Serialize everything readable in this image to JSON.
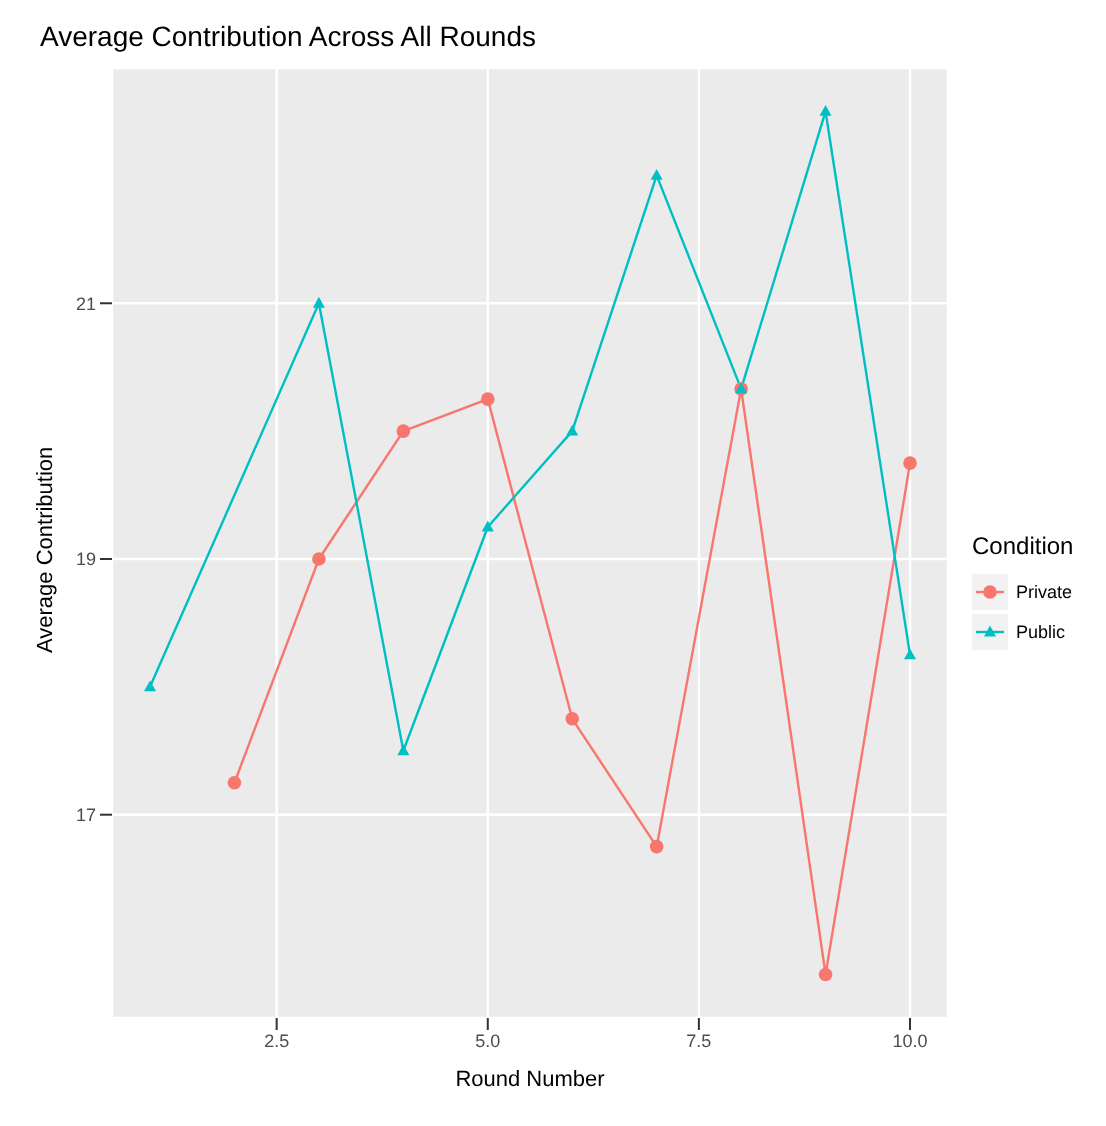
{
  "chart_data": {
    "type": "line",
    "title": "Average Contribution Across All Rounds",
    "xlabel": "Round Number",
    "ylabel": "Average Contribution",
    "legend_title": "Condition",
    "legend": "right",
    "grid": true,
    "series": [
      {
        "name": "Private",
        "color": "#f8766d",
        "marker": "circle",
        "x": [
          2,
          3,
          4,
          5,
          6,
          7,
          8,
          9,
          10
        ],
        "values": [
          17.25,
          19,
          20,
          20.25,
          17.75,
          16.75,
          20.33,
          15.75,
          19.75
        ]
      },
      {
        "name": "Public",
        "color": "#00bfc4",
        "marker": "triangle",
        "x": [
          1,
          3,
          4,
          5,
          6,
          7,
          8,
          9,
          10
        ],
        "values": [
          18,
          21,
          17.5,
          19.25,
          20,
          22,
          20.33,
          22.5,
          18.25
        ]
      }
    ],
    "xlim": [
      0.55,
      10.45
    ],
    "xticks": [
      2.5,
      {
        "value": 5,
        "label": "5.0"
      },
      7.5,
      {
        "value": 10,
        "label": "10.0"
      }
    ],
    "ylim": [
      15.41,
      22.84
    ],
    "yticks": [
      17,
      19,
      21
    ]
  }
}
